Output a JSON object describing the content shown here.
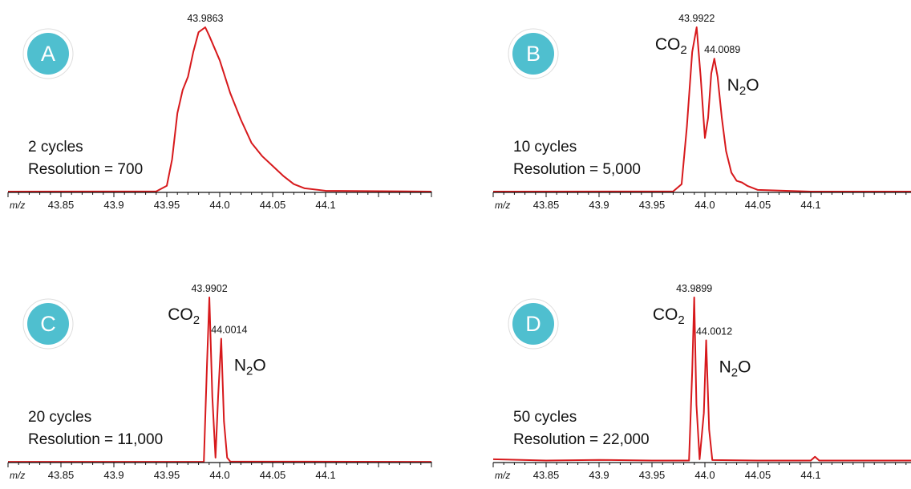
{
  "colors": {
    "trace": "#d7191c",
    "badge": "#4fbfcf",
    "badge_ring": "#ffffff",
    "axis": "#111111"
  },
  "x_axis": {
    "label": "m/z",
    "ticks": [
      "43.85",
      "43.9",
      "43.95",
      "44.0",
      "44.05",
      "44.1"
    ],
    "xlim": [
      43.8,
      44.2
    ]
  },
  "chart_data": [
    {
      "type": "line",
      "panel_letter": "A",
      "cycles_label": "2 cycles",
      "resolution_label": "Resolution = 700",
      "xlabel": "m/z",
      "ylabel": "",
      "xlim": [
        43.8,
        44.2
      ],
      "ylim": [
        0,
        1
      ],
      "grid": false,
      "peak_labels": [
        {
          "x": 43.9863,
          "text": "43.9863"
        }
      ],
      "species_labels": [],
      "series": [
        {
          "x": [
            43.8,
            43.94,
            43.95,
            43.955,
            43.96,
            43.965,
            43.97,
            43.975,
            43.98,
            43.9863,
            43.99,
            44.0,
            44.01,
            44.02,
            44.03,
            44.04,
            44.05,
            44.06,
            44.07,
            44.08,
            44.1,
            44.2
          ],
          "y": [
            0.005,
            0.006,
            0.04,
            0.2,
            0.48,
            0.62,
            0.7,
            0.85,
            0.97,
            1.0,
            0.95,
            0.8,
            0.6,
            0.44,
            0.3,
            0.22,
            0.16,
            0.1,
            0.05,
            0.025,
            0.01,
            0.005
          ]
        }
      ]
    },
    {
      "type": "line",
      "panel_letter": "B",
      "cycles_label": "10 cycles",
      "resolution_label": "Resolution = 5,000",
      "xlabel": "m/z",
      "ylabel": "",
      "xlim": [
        43.8,
        44.2
      ],
      "ylim": [
        0,
        1
      ],
      "grid": false,
      "peak_labels": [
        {
          "x": 43.9922,
          "text": "43.9922"
        },
        {
          "x": 44.0089,
          "text": "44.0089"
        }
      ],
      "species_labels": [
        {
          "x": 43.9922,
          "base": "CO",
          "sub": "2",
          "suffix": ""
        },
        {
          "x": 44.0089,
          "base": "N",
          "sub": "2",
          "suffix": "O"
        }
      ],
      "series": [
        {
          "x": [
            43.8,
            43.97,
            43.978,
            43.983,
            43.988,
            43.9922,
            43.996,
            44.0,
            44.003,
            44.006,
            44.0089,
            44.012,
            44.016,
            44.02,
            44.025,
            44.03,
            44.035,
            44.04,
            44.05,
            44.1,
            44.2
          ],
          "y": [
            0.005,
            0.006,
            0.05,
            0.4,
            0.85,
            1.0,
            0.7,
            0.33,
            0.45,
            0.72,
            0.81,
            0.7,
            0.45,
            0.25,
            0.12,
            0.07,
            0.06,
            0.04,
            0.015,
            0.005,
            0.005
          ]
        }
      ]
    },
    {
      "type": "line",
      "panel_letter": "C",
      "cycles_label": "20 cycles",
      "resolution_label": "Resolution = 11,000",
      "xlabel": "m/z",
      "ylabel": "",
      "xlim": [
        43.8,
        44.2
      ],
      "ylim": [
        0,
        1
      ],
      "grid": false,
      "peak_labels": [
        {
          "x": 43.9902,
          "text": "43.9902"
        },
        {
          "x": 44.0014,
          "text": "44.0014"
        }
      ],
      "species_labels": [
        {
          "x": 43.9902,
          "base": "CO",
          "sub": "2",
          "suffix": ""
        },
        {
          "x": 44.0014,
          "base": "N",
          "sub": "2",
          "suffix": "O"
        }
      ],
      "series": [
        {
          "x": [
            43.8,
            43.985,
            43.988,
            43.9902,
            43.993,
            43.996,
            43.9985,
            44.0014,
            44.004,
            44.007,
            44.01,
            44.2
          ],
          "y": [
            0.004,
            0.005,
            0.6,
            1.0,
            0.4,
            0.03,
            0.4,
            0.75,
            0.25,
            0.03,
            0.006,
            0.004
          ]
        }
      ]
    },
    {
      "type": "line",
      "panel_letter": "D",
      "cycles_label": "50 cycles",
      "resolution_label": "Resolution = 22,000",
      "xlabel": "m/z",
      "ylabel": "",
      "xlim": [
        43.8,
        44.2
      ],
      "ylim": [
        0,
        1
      ],
      "grid": false,
      "peak_labels": [
        {
          "x": 43.9899,
          "text": "43.9899"
        },
        {
          "x": 44.0012,
          "text": "44.0012"
        }
      ],
      "species_labels": [
        {
          "x": 43.9899,
          "base": "CO",
          "sub": "2",
          "suffix": ""
        },
        {
          "x": 44.0012,
          "base": "N",
          "sub": "2",
          "suffix": "O"
        }
      ],
      "series": [
        {
          "x": [
            43.8,
            43.85,
            43.9,
            43.95,
            43.985,
            43.988,
            43.9899,
            43.992,
            43.995,
            43.999,
            44.0012,
            44.004,
            44.007,
            44.05,
            44.1,
            44.104,
            44.108,
            44.2
          ],
          "y": [
            0.02,
            0.012,
            0.016,
            0.012,
            0.012,
            0.55,
            1.0,
            0.35,
            0.02,
            0.3,
            0.74,
            0.2,
            0.015,
            0.012,
            0.012,
            0.035,
            0.012,
            0.012
          ]
        }
      ]
    }
  ]
}
